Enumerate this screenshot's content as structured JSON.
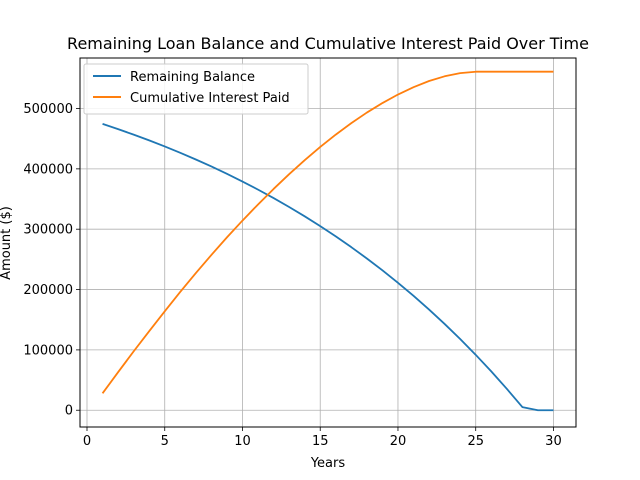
{
  "chart_data": {
    "type": "line",
    "title": "Remaining Loan Balance and Cumulative Interest Paid Over Time",
    "xlabel": "Years",
    "ylabel": "Amount ($)",
    "xlim": [
      -0.45,
      31.45
    ],
    "ylim": [
      -27796,
      583725
    ],
    "xticks": [
      0,
      5,
      10,
      15,
      20,
      25,
      30
    ],
    "yticks": [
      0,
      100000,
      200000,
      300000,
      400000,
      500000
    ],
    "grid": true,
    "legend": "upper left",
    "x": [
      1,
      2,
      3,
      4,
      5,
      6,
      7,
      8,
      9,
      10,
      11,
      12,
      13,
      14,
      15,
      16,
      17,
      18,
      19,
      20,
      21,
      22,
      23,
      24,
      25,
      26,
      27,
      28,
      29,
      30
    ],
    "series": [
      {
        "name": "Remaining Balance",
        "color": "#1f77b4",
        "values": [
          474567,
          465869,
          456743,
          447169,
          437125,
          426587,
          415531,
          403932,
          391763,
          378996,
          365602,
          351549,
          336806,
          321338,
          305110,
          288085,
          270223,
          251484,
          231824,
          211198,
          189559,
          166856,
          143037,
          118048,
          91831,
          64326,
          35469,
          5194,
          0,
          0
        ]
      },
      {
        "name": "Cumulative Interest Paid",
        "color": "#ff7f0e",
        "values": [
          28000,
          63000,
          97500,
          131000,
          164000,
          196200,
          227300,
          257400,
          286400,
          314300,
          341000,
          366700,
          391200,
          414400,
          436300,
          456800,
          475800,
          493300,
          509100,
          523200,
          535400,
          545600,
          553400,
          558600,
          561000,
          561000,
          561000,
          561000,
          561000,
          561000
        ]
      }
    ]
  }
}
